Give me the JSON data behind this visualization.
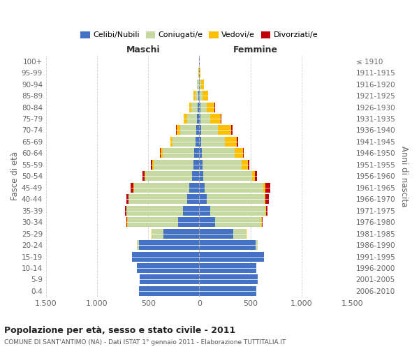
{
  "age_groups": [
    "0-4",
    "5-9",
    "10-14",
    "15-19",
    "20-24",
    "25-29",
    "30-34",
    "35-39",
    "40-44",
    "45-49",
    "50-54",
    "55-59",
    "60-64",
    "65-69",
    "70-74",
    "75-79",
    "80-84",
    "85-89",
    "90-94",
    "95-99",
    "100+"
  ],
  "birth_years": [
    "2006-2010",
    "2001-2005",
    "1996-2000",
    "1991-1995",
    "1986-1990",
    "1981-1985",
    "1976-1980",
    "1971-1975",
    "1966-1970",
    "1961-1965",
    "1956-1960",
    "1951-1955",
    "1946-1950",
    "1941-1945",
    "1936-1940",
    "1931-1935",
    "1926-1930",
    "1921-1925",
    "1916-1920",
    "1911-1915",
    "≤ 1910"
  ],
  "males": {
    "celibinubili": [
      590,
      580,
      610,
      660,
      590,
      350,
      210,
      160,
      120,
      100,
      70,
      60,
      50,
      40,
      30,
      20,
      15,
      10,
      5,
      3,
      2
    ],
    "coniugati": [
      0,
      0,
      0,
      0,
      20,
      110,
      490,
      550,
      570,
      540,
      460,
      390,
      310,
      220,
      160,
      100,
      60,
      30,
      15,
      2,
      0
    ],
    "vedovi": [
      0,
      0,
      0,
      0,
      0,
      5,
      5,
      5,
      5,
      5,
      5,
      10,
      20,
      20,
      30,
      30,
      20,
      15,
      5,
      2,
      0
    ],
    "divorziati": [
      0,
      0,
      0,
      0,
      0,
      5,
      10,
      10,
      15,
      25,
      20,
      15,
      5,
      5,
      10,
      5,
      5,
      0,
      0,
      0,
      0
    ]
  },
  "females": {
    "celibinubili": [
      555,
      570,
      555,
      630,
      550,
      330,
      155,
      105,
      75,
      55,
      40,
      30,
      25,
      20,
      15,
      10,
      10,
      5,
      5,
      2,
      2
    ],
    "coniugate": [
      0,
      0,
      0,
      0,
      25,
      125,
      450,
      545,
      565,
      570,
      475,
      385,
      320,
      230,
      170,
      100,
      60,
      30,
      15,
      5,
      0
    ],
    "vedove": [
      0,
      0,
      0,
      0,
      0,
      5,
      5,
      5,
      10,
      20,
      30,
      60,
      80,
      120,
      130,
      100,
      80,
      50,
      25,
      5,
      0
    ],
    "divorziate": [
      0,
      0,
      0,
      0,
      0,
      5,
      10,
      10,
      30,
      50,
      20,
      15,
      10,
      10,
      10,
      5,
      5,
      0,
      0,
      0,
      0
    ]
  },
  "color_celibinubili": "#4472C4",
  "color_coniugati": "#c5d9a0",
  "color_vedovi": "#ffc000",
  "color_divorziati": "#c0000b",
  "xlim": 1500,
  "xticks": [
    -1500,
    -1000,
    -500,
    0,
    500,
    1000,
    1500
  ],
  "xticklabels": [
    "1.500",
    "1.000",
    "500",
    "0",
    "500",
    "1.000",
    "1.500"
  ],
  "title": "Popolazione per età, sesso e stato civile - 2011",
  "subtitle": "COMUNE DI SANT'ANTIMO (NA) - Dati ISTAT 1° gennaio 2011 - Elaborazione TUTTITALIA.IT",
  "ylabel_left": "Fasce di età",
  "ylabel_right": "Anni di nascita",
  "label_maschi": "Maschi",
  "label_femmine": "Femmine",
  "legend_labels": [
    "Celibi/Nubili",
    "Coniugati/e",
    "Vedovi/e",
    "Divorziati/e"
  ],
  "background_color": "#ffffff",
  "grid_color": "#cccccc"
}
